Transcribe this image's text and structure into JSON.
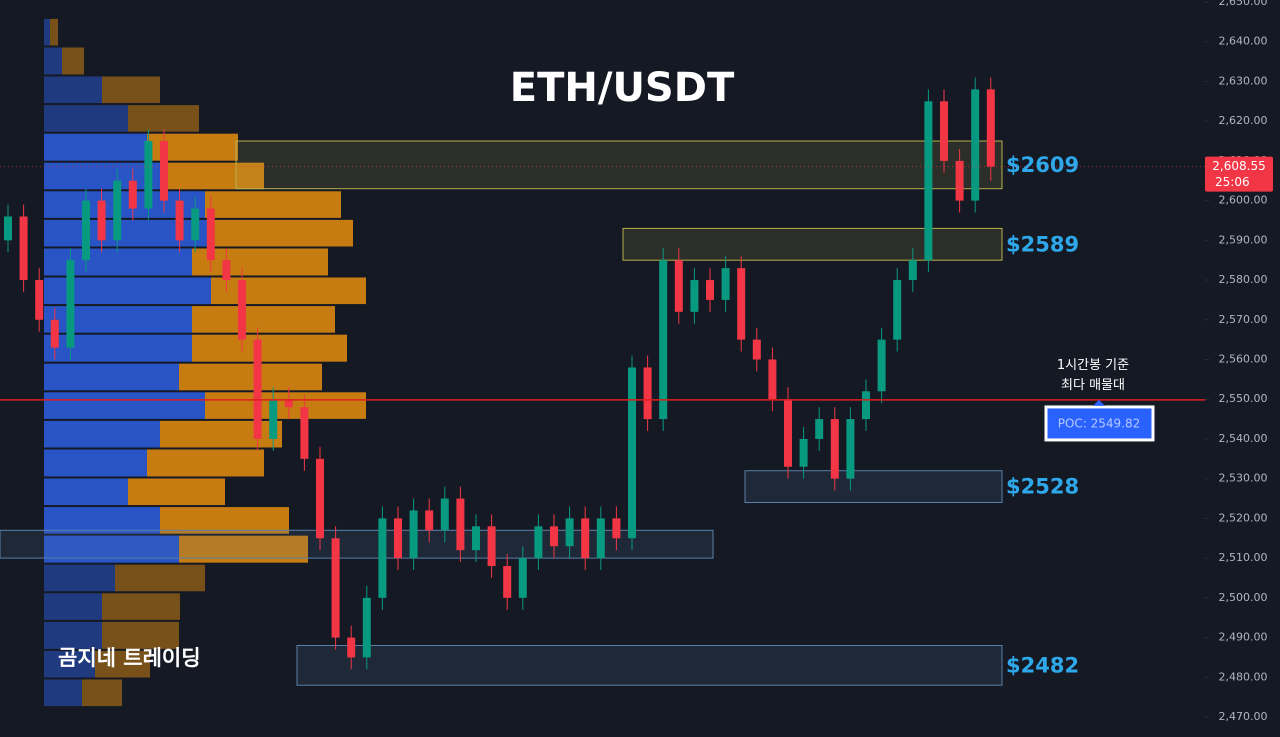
{
  "chart_data": {
    "type": "candlestick",
    "title": "ETH/USDT",
    "watermark": "곰지네 트레이딩",
    "annotation": "1시간봉 기준\n최다 매물대",
    "up_color": "#089981",
    "down_color": "#f23645",
    "ylim": [
      2470,
      2650
    ],
    "yticks": [
      {
        "value": 2470,
        "label": "2,470.00"
      },
      {
        "value": 2480,
        "label": "2,480.00"
      },
      {
        "value": 2490,
        "label": "2,490.00"
      },
      {
        "value": 2500,
        "label": "2,500.00"
      },
      {
        "value": 2510,
        "label": "2,510.00"
      },
      {
        "value": 2520,
        "label": "2,520.00"
      },
      {
        "value": 2530,
        "label": "2,530.00"
      },
      {
        "value": 2540,
        "label": "2,540.00"
      },
      {
        "value": 2550,
        "label": "2,550.00"
      },
      {
        "value": 2560,
        "label": "2,560.00"
      },
      {
        "value": 2570,
        "label": "2,570.00"
      },
      {
        "value": 2580,
        "label": "2,580.00"
      },
      {
        "value": 2590,
        "label": "2,590.00"
      },
      {
        "value": 2600,
        "label": "2,600.00"
      },
      {
        "value": 2610,
        "label": "2,610.00"
      },
      {
        "value": 2620,
        "label": "2,620.00"
      },
      {
        "value": 2630,
        "label": "2,630.00"
      },
      {
        "value": 2640,
        "label": "2,640.00"
      },
      {
        "value": 2650,
        "label": "2,650.00"
      }
    ],
    "open": [
      2590,
      2596,
      2580,
      2570,
      2563,
      2585,
      2600,
      2590,
      2605,
      2598,
      2615,
      2600,
      2590,
      2598,
      2585,
      2580,
      2565,
      2540,
      2550,
      2548,
      2535,
      2515,
      2490,
      2485,
      2500,
      2520,
      2510,
      2522,
      2517,
      2525,
      2512,
      2518,
      2508,
      2500,
      2510,
      2518,
      2513,
      2520,
      2510,
      2520,
      2515,
      2558,
      2545,
      2585,
      2572,
      2580,
      2575,
      2583,
      2565,
      2560,
      2550,
      2533,
      2540,
      2545,
      2530,
      2545,
      2552,
      2565,
      2580,
      2585,
      2625,
      2610,
      2600,
      2628
    ],
    "high": [
      2599,
      2599,
      2583,
      2573,
      2588,
      2603,
      2603,
      2608,
      2608,
      2618,
      2618,
      2603,
      2601,
      2601,
      2588,
      2583,
      2568,
      2553,
      2553,
      2551,
      2538,
      2518,
      2493,
      2503,
      2523,
      2523,
      2525,
      2525,
      2528,
      2528,
      2521,
      2521,
      2511,
      2513,
      2521,
      2521,
      2523,
      2523,
      2523,
      2523,
      2561,
      2561,
      2588,
      2588,
      2583,
      2583,
      2586,
      2586,
      2568,
      2563,
      2553,
      2543,
      2548,
      2548,
      2548,
      2555,
      2568,
      2583,
      2588,
      2628,
      2628,
      2613,
      2631,
      2631
    ],
    "low": [
      2587,
      2577,
      2567,
      2560,
      2560,
      2582,
      2587,
      2587,
      2595,
      2595,
      2597,
      2587,
      2587,
      2582,
      2577,
      2562,
      2537,
      2537,
      2545,
      2532,
      2512,
      2487,
      2482,
      2482,
      2497,
      2507,
      2507,
      2514,
      2514,
      2509,
      2509,
      2505,
      2497,
      2497,
      2507,
      2510,
      2510,
      2507,
      2507,
      2512,
      2512,
      2542,
      2542,
      2569,
      2569,
      2572,
      2572,
      2562,
      2557,
      2547,
      2530,
      2530,
      2537,
      2527,
      2527,
      2542,
      2549,
      2562,
      2577,
      2582,
      2607,
      2597,
      2597,
      2605
    ],
    "close": [
      2596,
      2580,
      2570,
      2563,
      2585,
      2600,
      2590,
      2605,
      2598,
      2615,
      2600,
      2590,
      2598,
      2585,
      2580,
      2565,
      2540,
      2550,
      2548,
      2535,
      2515,
      2490,
      2485,
      2500,
      2520,
      2510,
      2522,
      2517,
      2525,
      2512,
      2518,
      2508,
      2500,
      2510,
      2518,
      2513,
      2520,
      2510,
      2520,
      2515,
      2558,
      2545,
      2585,
      2572,
      2580,
      2575,
      2583,
      2565,
      2560,
      2550,
      2533,
      2540,
      2545,
      2530,
      2545,
      2552,
      2565,
      2580,
      2585,
      2625,
      2610,
      2600,
      2628,
      2608.55
    ],
    "profile": {
      "buy_color": "#2a5bd7",
      "sell_color": "#d9870f",
      "levels": [
        2646,
        2638.8,
        2631.5,
        2624.3,
        2617.1,
        2609.8,
        2602.6,
        2595.4,
        2588.2,
        2580.9,
        2573.7,
        2566.5,
        2559.2,
        2552.0,
        2544.8,
        2537.6,
        2530.3,
        2523.1,
        2515.9,
        2508.6,
        2501.4,
        2494.2,
        2486.9,
        2479.7,
        2472.5
      ],
      "buy": [
        6,
        18,
        58,
        84,
        103,
        122,
        161,
        167,
        148,
        167,
        148,
        148,
        135,
        161,
        116,
        103,
        84,
        116,
        135,
        71,
        58,
        58,
        51,
        38
      ],
      "sell": [
        8,
        22,
        58,
        71,
        91,
        98,
        136,
        142,
        136,
        155,
        143,
        155,
        143,
        161,
        122,
        117,
        97,
        129,
        129,
        90,
        78,
        77,
        55,
        40
      ]
    },
    "zones": [
      {
        "label": "$2609",
        "low": 2603,
        "high": 2615,
        "color": "#b8b04a"
      },
      {
        "label": "$2589",
        "low": 2585,
        "high": 2593,
        "color": "#b8b04a"
      },
      {
        "label": "$2528",
        "low": 2524,
        "high": 2532,
        "color": "#5a7fa8"
      },
      {
        "label": "$2482",
        "low": 2478,
        "high": 2488,
        "color": "#5a7fa8"
      },
      {
        "low": 2510,
        "high": 2517,
        "color": "#5a7fa8"
      }
    ],
    "poc": {
      "value": 2549.82,
      "label": "POC: 2549.82",
      "color": "#e01e1e"
    },
    "current_price": {
      "value": 2608.55,
      "label": "2,608.55"
    },
    "countdown": "25:06"
  }
}
